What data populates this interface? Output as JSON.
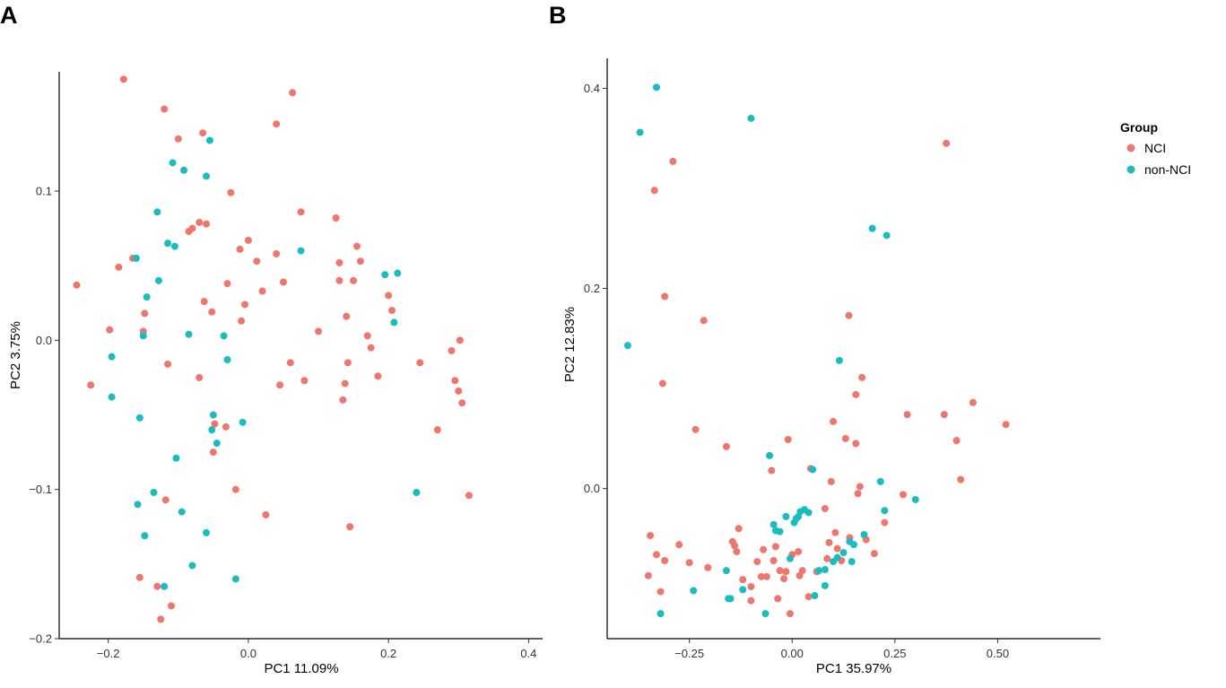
{
  "colors": {
    "NCI": "#F0766D",
    "non-NCI": "#1ABDBF"
  },
  "legend": {
    "title": "Group",
    "items": [
      "NCI",
      "non-NCI"
    ]
  },
  "chart_data": [
    {
      "type": "scatter",
      "panel_label": "A",
      "xlabel": "PC1 11.09%",
      "ylabel": "PC2 3.75%",
      "xlim": [
        -0.27,
        0.42
      ],
      "ylim": [
        -0.2,
        0.18
      ],
      "xticks": [
        -0.2,
        0.0,
        0.2,
        0.4
      ],
      "xtick_labels": [
        "−0.2",
        "0.0",
        "0.2",
        "0.4"
      ],
      "yticks": [
        -0.2,
        -0.1,
        0.0,
        0.1
      ],
      "ytick_labels": [
        "−0.2",
        "−0.1",
        "0.0",
        "0.1"
      ],
      "series": [
        {
          "name": "NCI",
          "points": [
            [
              -0.245,
              0.037
            ],
            [
              -0.225,
              -0.03
            ],
            [
              -0.198,
              0.007
            ],
            [
              -0.185,
              0.049
            ],
            [
              -0.178,
              0.175
            ],
            [
              -0.165,
              0.055
            ],
            [
              -0.155,
              -0.159
            ],
            [
              -0.15,
              0.006
            ],
            [
              -0.148,
              0.018
            ],
            [
              -0.13,
              -0.165
            ],
            [
              -0.125,
              -0.187
            ],
            [
              -0.12,
              0.155
            ],
            [
              -0.118,
              -0.107
            ],
            [
              -0.115,
              -0.016
            ],
            [
              -0.11,
              -0.178
            ],
            [
              -0.1,
              0.135
            ],
            [
              -0.085,
              0.073
            ],
            [
              -0.08,
              0.075
            ],
            [
              -0.07,
              0.079
            ],
            [
              -0.07,
              -0.025
            ],
            [
              -0.065,
              0.139
            ],
            [
              -0.063,
              0.026
            ],
            [
              -0.06,
              0.078
            ],
            [
              -0.052,
              0.019
            ],
            [
              -0.05,
              -0.075
            ],
            [
              -0.048,
              -0.056
            ],
            [
              -0.032,
              -0.058
            ],
            [
              -0.03,
              0.038
            ],
            [
              -0.025,
              0.099
            ],
            [
              -0.018,
              -0.1
            ],
            [
              -0.012,
              0.061
            ],
            [
              -0.01,
              0.013
            ],
            [
              -0.005,
              0.024
            ],
            [
              0.0,
              0.067
            ],
            [
              0.012,
              0.053
            ],
            [
              0.02,
              0.033
            ],
            [
              0.025,
              -0.117
            ],
            [
              0.04,
              0.145
            ],
            [
              0.04,
              0.058
            ],
            [
              0.045,
              -0.03
            ],
            [
              0.05,
              0.039
            ],
            [
              0.06,
              -0.015
            ],
            [
              0.063,
              0.166
            ],
            [
              0.075,
              0.086
            ],
            [
              0.08,
              -0.027
            ],
            [
              0.1,
              0.006
            ],
            [
              0.125,
              0.082
            ],
            [
              0.13,
              0.052
            ],
            [
              0.13,
              0.04
            ],
            [
              0.135,
              -0.04
            ],
            [
              0.138,
              -0.029
            ],
            [
              0.14,
              0.016
            ],
            [
              0.142,
              -0.015
            ],
            [
              0.145,
              -0.125
            ],
            [
              0.15,
              0.04
            ],
            [
              0.155,
              0.063
            ],
            [
              0.16,
              0.053
            ],
            [
              0.17,
              0.003
            ],
            [
              0.175,
              -0.005
            ],
            [
              0.185,
              -0.024
            ],
            [
              0.2,
              0.03
            ],
            [
              0.205,
              0.02
            ],
            [
              0.245,
              -0.015
            ],
            [
              0.27,
              -0.06
            ],
            [
              0.29,
              -0.007
            ],
            [
              0.295,
              -0.027
            ],
            [
              0.3,
              -0.034
            ],
            [
              0.302,
              0.0
            ],
            [
              0.305,
              -0.042
            ],
            [
              0.315,
              -0.104
            ]
          ]
        },
        {
          "name": "non-NCI",
          "points": [
            [
              -0.195,
              -0.011
            ],
            [
              -0.195,
              -0.038
            ],
            [
              -0.16,
              0.055
            ],
            [
              -0.158,
              -0.11
            ],
            [
              -0.155,
              -0.052
            ],
            [
              -0.15,
              0.003
            ],
            [
              -0.148,
              -0.131
            ],
            [
              -0.145,
              0.029
            ],
            [
              -0.135,
              -0.102
            ],
            [
              -0.13,
              0.086
            ],
            [
              -0.128,
              0.04
            ],
            [
              -0.12,
              -0.165
            ],
            [
              -0.115,
              0.065
            ],
            [
              -0.108,
              0.119
            ],
            [
              -0.105,
              0.063
            ],
            [
              -0.103,
              -0.079
            ],
            [
              -0.095,
              -0.115
            ],
            [
              -0.092,
              0.114
            ],
            [
              -0.085,
              0.004
            ],
            [
              -0.08,
              -0.151
            ],
            [
              -0.06,
              -0.129
            ],
            [
              -0.06,
              0.11
            ],
            [
              -0.055,
              0.134
            ],
            [
              -0.052,
              -0.06
            ],
            [
              -0.05,
              -0.05
            ],
            [
              -0.045,
              -0.069
            ],
            [
              -0.035,
              0.003
            ],
            [
              -0.03,
              -0.013
            ],
            [
              -0.018,
              -0.16
            ],
            [
              -0.008,
              -0.055
            ],
            [
              0.075,
              0.06
            ],
            [
              0.195,
              0.044
            ],
            [
              0.208,
              0.012
            ],
            [
              0.213,
              0.045
            ],
            [
              0.24,
              -0.102
            ]
          ]
        }
      ]
    },
    {
      "type": "scatter",
      "panel_label": "B",
      "xlabel": "PC1 35.97%",
      "ylabel": "PC2 12.83%",
      "xlim": [
        -0.45,
        0.75
      ],
      "ylim": [
        -0.15,
        0.43
      ],
      "xticks": [
        -0.25,
        0.0,
        0.25,
        0.5
      ],
      "xtick_labels": [
        "−0.25",
        "0.00",
        "0.25",
        "0.50"
      ],
      "yticks": [
        0.0,
        0.2,
        0.4
      ],
      "ytick_labels": [
        "0.0",
        "0.2",
        "0.4"
      ],
      "series": [
        {
          "name": "NCI",
          "points": [
            [
              -0.35,
              -0.087
            ],
            [
              -0.345,
              -0.047
            ],
            [
              -0.335,
              0.298
            ],
            [
              -0.33,
              -0.066
            ],
            [
              -0.32,
              -0.103
            ],
            [
              -0.315,
              0.105
            ],
            [
              -0.31,
              0.192
            ],
            [
              -0.31,
              -0.072
            ],
            [
              -0.29,
              0.327
            ],
            [
              -0.275,
              -0.056
            ],
            [
              -0.25,
              -0.074
            ],
            [
              -0.235,
              0.059
            ],
            [
              -0.215,
              0.168
            ],
            [
              -0.205,
              -0.079
            ],
            [
              -0.16,
              0.042
            ],
            [
              -0.145,
              -0.053
            ],
            [
              -0.14,
              -0.057
            ],
            [
              -0.135,
              -0.063
            ],
            [
              -0.13,
              -0.04
            ],
            [
              -0.12,
              -0.091
            ],
            [
              -0.1,
              -0.098
            ],
            [
              -0.1,
              -0.112
            ],
            [
              -0.085,
              -0.073
            ],
            [
              -0.075,
              -0.088
            ],
            [
              -0.07,
              -0.061
            ],
            [
              -0.062,
              -0.088
            ],
            [
              -0.05,
              0.018
            ],
            [
              -0.045,
              -0.072
            ],
            [
              -0.04,
              -0.058
            ],
            [
              -0.035,
              -0.11
            ],
            [
              -0.03,
              -0.082
            ],
            [
              -0.02,
              -0.09
            ],
            [
              -0.015,
              -0.083
            ],
            [
              -0.01,
              0.049
            ],
            [
              -0.005,
              -0.125
            ],
            [
              0.0,
              -0.066
            ],
            [
              0.015,
              -0.063
            ],
            [
              0.018,
              -0.087
            ],
            [
              0.025,
              -0.082
            ],
            [
              0.04,
              -0.108
            ],
            [
              0.045,
              0.02
            ],
            [
              0.06,
              -0.083
            ],
            [
              0.08,
              -0.02
            ],
            [
              0.085,
              -0.07
            ],
            [
              0.09,
              -0.054
            ],
            [
              0.095,
              0.007
            ],
            [
              0.1,
              0.067
            ],
            [
              0.105,
              -0.044
            ],
            [
              0.11,
              -0.06
            ],
            [
              0.12,
              -0.072
            ],
            [
              0.13,
              0.05
            ],
            [
              0.138,
              0.173
            ],
            [
              0.14,
              -0.049
            ],
            [
              0.155,
              0.094
            ],
            [
              0.155,
              0.045
            ],
            [
              0.16,
              -0.005
            ],
            [
              0.165,
              0.002
            ],
            [
              0.17,
              0.111
            ],
            [
              0.18,
              -0.051
            ],
            [
              0.2,
              -0.065
            ],
            [
              0.225,
              -0.034
            ],
            [
              0.27,
              -0.006
            ],
            [
              0.28,
              0.074
            ],
            [
              0.37,
              0.074
            ],
            [
              0.375,
              0.345
            ],
            [
              0.4,
              0.048
            ],
            [
              0.41,
              0.009
            ],
            [
              0.44,
              0.086
            ],
            [
              0.52,
              0.064
            ]
          ]
        },
        {
          "name": "non-NCI",
          "points": [
            [
              -0.4,
              0.143
            ],
            [
              -0.37,
              0.356
            ],
            [
              -0.33,
              0.401
            ],
            [
              -0.32,
              -0.125
            ],
            [
              -0.24,
              -0.102
            ],
            [
              -0.16,
              -0.082
            ],
            [
              -0.155,
              -0.11
            ],
            [
              -0.15,
              -0.11
            ],
            [
              -0.12,
              -0.101
            ],
            [
              -0.1,
              0.37
            ],
            [
              -0.065,
              -0.125
            ],
            [
              -0.055,
              0.033
            ],
            [
              -0.045,
              -0.036
            ],
            [
              -0.04,
              -0.042
            ],
            [
              -0.03,
              -0.043
            ],
            [
              -0.015,
              -0.028
            ],
            [
              -0.005,
              -0.07
            ],
            [
              0.005,
              -0.034
            ],
            [
              0.01,
              -0.03
            ],
            [
              0.015,
              -0.028
            ],
            [
              0.02,
              -0.023
            ],
            [
              0.03,
              -0.021
            ],
            [
              0.04,
              -0.024
            ],
            [
              0.05,
              0.019
            ],
            [
              0.055,
              -0.107
            ],
            [
              0.065,
              -0.082
            ],
            [
              0.08,
              -0.097
            ],
            [
              0.08,
              -0.081
            ],
            [
              0.1,
              -0.073
            ],
            [
              0.11,
              -0.069
            ],
            [
              0.115,
              0.128
            ],
            [
              0.125,
              -0.064
            ],
            [
              0.14,
              -0.053
            ],
            [
              0.145,
              -0.073
            ],
            [
              0.15,
              -0.056
            ],
            [
              0.175,
              -0.046
            ],
            [
              0.195,
              0.26
            ],
            [
              0.215,
              0.007
            ],
            [
              0.225,
              -0.022
            ],
            [
              0.23,
              0.253
            ],
            [
              0.3,
              -0.011
            ]
          ]
        }
      ]
    }
  ]
}
